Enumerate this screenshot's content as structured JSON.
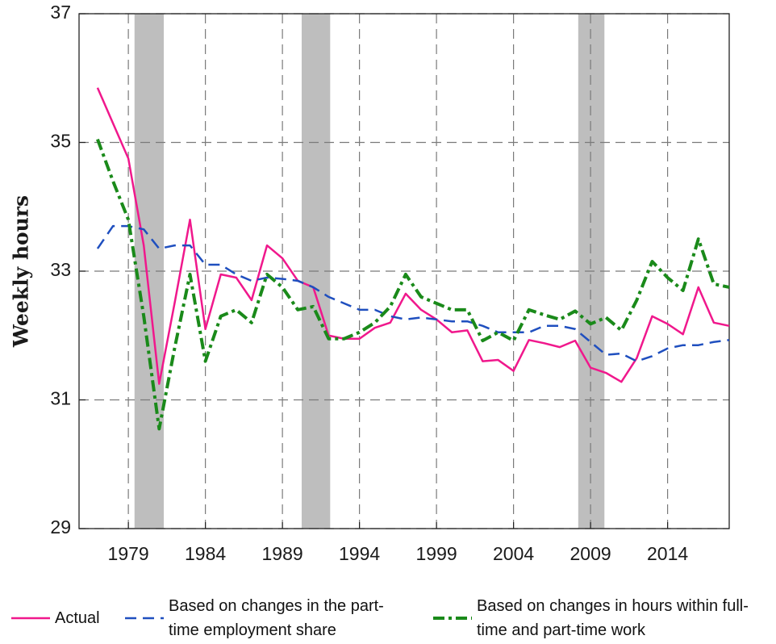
{
  "chart_data": {
    "type": "line",
    "y_label": "Weekly hours",
    "x": [
      1977,
      1978,
      1979,
      1980,
      1981,
      1982,
      1983,
      1984,
      1985,
      1986,
      1987,
      1988,
      1989,
      1990,
      1991,
      1992,
      1993,
      1994,
      1995,
      1996,
      1997,
      1998,
      1999,
      2000,
      2001,
      2002,
      2003,
      2004,
      2005,
      2006,
      2007,
      2008,
      2009,
      2010,
      2011,
      2012,
      2013,
      2014,
      2015,
      2016,
      2017,
      2018
    ],
    "series": [
      {
        "name": "Actual",
        "color": "#f0188c",
        "line_style": "solid",
        "values": [
          35.85,
          35.3,
          34.75,
          33.4,
          31.25,
          32.5,
          33.8,
          32.1,
          32.95,
          32.9,
          32.55,
          33.4,
          33.2,
          32.85,
          32.75,
          32.0,
          31.95,
          31.95,
          32.12,
          32.2,
          32.65,
          32.4,
          32.25,
          32.05,
          32.08,
          31.6,
          31.62,
          31.45,
          31.93,
          31.88,
          31.82,
          31.92,
          31.5,
          31.42,
          31.28,
          31.65,
          32.3,
          32.18,
          32.02,
          32.75,
          32.2,
          32.15
        ]
      },
      {
        "name": "Based on changes in the part-time employment share",
        "color": "#1f4fbf",
        "line_style": "dashed",
        "values": [
          33.35,
          33.7,
          33.7,
          33.65,
          33.35,
          33.4,
          33.4,
          33.1,
          33.1,
          32.95,
          32.85,
          32.9,
          32.88,
          32.85,
          32.75,
          32.6,
          32.5,
          32.4,
          32.4,
          32.3,
          32.25,
          32.28,
          32.25,
          32.22,
          32.22,
          32.15,
          32.05,
          32.05,
          32.05,
          32.15,
          32.15,
          32.1,
          31.9,
          31.7,
          31.72,
          31.6,
          31.68,
          31.8,
          31.85,
          31.85,
          31.9,
          31.93
        ]
      },
      {
        "name": "Based on changes in hours within full-time and part-time work",
        "color": "#1a8a1a",
        "line_style": "dashdot",
        "values": [
          35.05,
          34.4,
          33.8,
          32.3,
          30.55,
          31.8,
          32.95,
          31.6,
          32.3,
          32.4,
          32.2,
          32.95,
          32.75,
          32.4,
          32.45,
          31.95,
          31.95,
          32.05,
          32.2,
          32.45,
          32.95,
          32.6,
          32.5,
          32.4,
          32.4,
          31.92,
          32.05,
          31.92,
          32.4,
          32.32,
          32.25,
          32.38,
          32.18,
          32.28,
          32.08,
          32.55,
          33.15,
          32.9,
          32.7,
          33.5,
          32.8,
          32.75
        ]
      }
    ],
    "shaded_spans": [
      [
        1979.4,
        1981.3
      ],
      [
        1990.25,
        1992.1
      ],
      [
        2008.2,
        2009.9
      ]
    ],
    "shade_color": "#bebebe",
    "xlim": [
      1975.8,
      2018
    ],
    "xticks": [
      1979,
      1984,
      1989,
      1994,
      1999,
      2004,
      2009,
      2014
    ],
    "ylim": [
      29,
      37
    ],
    "yticks": [
      29,
      31,
      33,
      35,
      37
    ],
    "grid": true
  }
}
